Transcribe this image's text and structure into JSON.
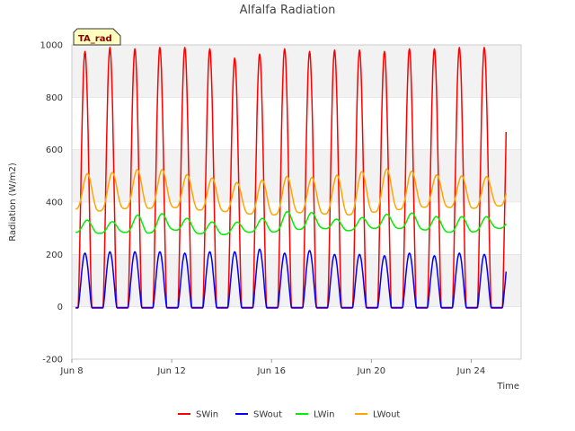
{
  "chart_data": {
    "type": "line",
    "title": "Alfalfa Radiation",
    "xlabel": "Time",
    "ylabel": "Radiation (W/m2)",
    "badge": "TA_rad",
    "ylim": [
      -200,
      1000
    ],
    "xlim": [
      "2024-06-08",
      "2024-06-26"
    ],
    "yticks": [
      -200,
      0,
      200,
      400,
      600,
      800,
      1000
    ],
    "xticks": [
      {
        "date": "2024-06-08",
        "label": "Jun 8"
      },
      {
        "date": "2024-06-12",
        "label": "Jun 12"
      },
      {
        "date": "2024-06-16",
        "label": "Jun 16"
      },
      {
        "date": "2024-06-20",
        "label": "Jun 20"
      },
      {
        "date": "2024-06-24",
        "label": "Jun 24"
      }
    ],
    "grid": true,
    "legend_position": "bottom",
    "x": [
      "2024-06-08",
      "2024-06-09",
      "2024-06-10",
      "2024-06-11",
      "2024-06-12",
      "2024-06-13",
      "2024-06-14",
      "2024-06-15",
      "2024-06-16",
      "2024-06-17",
      "2024-06-18",
      "2024-06-19",
      "2024-06-20",
      "2024-06-21",
      "2024-06-22",
      "2024-06-23",
      "2024-06-24",
      "2024-06-25"
    ],
    "series": [
      {
        "name": "SWin",
        "color": "#ff0000",
        "night": -5,
        "daily_peak": [
          975,
          990,
          985,
          990,
          990,
          985,
          950,
          965,
          985,
          975,
          980,
          980,
          975,
          985,
          985,
          990,
          990,
          990
        ]
      },
      {
        "name": "SWout",
        "color": "#0000ff",
        "night": -3,
        "daily_peak": [
          205,
          210,
          210,
          210,
          205,
          210,
          210,
          220,
          205,
          215,
          200,
          200,
          195,
          205,
          195,
          205,
          200,
          200
        ]
      },
      {
        "name": "LWin",
        "color": "#00ee00",
        "daily_min": [
          285,
          280,
          285,
          280,
          295,
          280,
          275,
          285,
          285,
          295,
          300,
          290,
          300,
          300,
          295,
          285,
          285,
          300
        ],
        "daily_max": [
          340,
          325,
          325,
          365,
          350,
          330,
          320,
          325,
          345,
          375,
          350,
          325,
          350,
          355,
          360,
          335,
          350,
          340
        ]
      },
      {
        "name": "LWout",
        "color": "#ffa500",
        "daily_min": [
          375,
          365,
          375,
          375,
          380,
          370,
          365,
          355,
          350,
          360,
          355,
          350,
          360,
          370,
          380,
          380,
          375,
          385
        ],
        "daily_max": [
          505,
          510,
          515,
          530,
          520,
          495,
          490,
          465,
          495,
          500,
          490,
          510,
          520,
          530,
          510,
          500,
          500,
          495
        ]
      }
    ]
  }
}
